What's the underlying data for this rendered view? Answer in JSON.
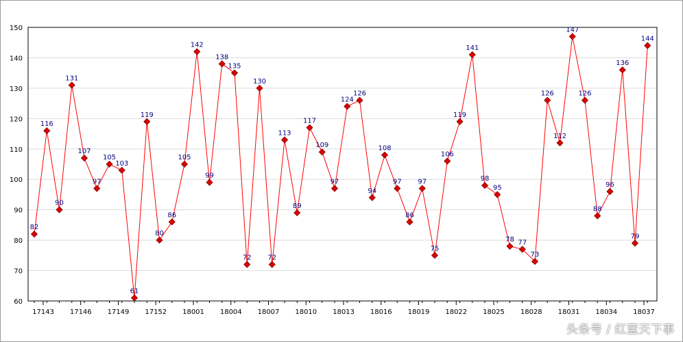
{
  "chart_data": {
    "type": "line",
    "title": "",
    "xlabel": "",
    "ylabel": "",
    "ylim": [
      60,
      150
    ],
    "yticks": [
      60,
      70,
      80,
      90,
      100,
      110,
      120,
      130,
      140,
      150
    ],
    "grid": true,
    "line_color": "#ff0000",
    "marker_color": "#e00000",
    "label_color": "#000080",
    "x_tick_labels": [
      "17143",
      "17146",
      "17149",
      "17152",
      "18001",
      "18004",
      "18007",
      "18010",
      "18013",
      "18016",
      "18019",
      "18022",
      "18025",
      "18028",
      "18031",
      "18034",
      "18037"
    ],
    "x_tick_every": 3,
    "values": [
      82,
      116,
      90,
      131,
      107,
      97,
      105,
      103,
      61,
      119,
      80,
      86,
      105,
      142,
      99,
      138,
      135,
      72,
      130,
      72,
      113,
      89,
      117,
      109,
      97,
      124,
      126,
      94,
      108,
      97,
      86,
      97,
      75,
      106,
      119,
      141,
      98,
      95,
      78,
      77,
      73,
      126,
      112,
      147,
      126,
      88,
      96,
      136,
      79,
      144
    ]
  },
  "watermark": "头条号 / 红蓝天下事"
}
